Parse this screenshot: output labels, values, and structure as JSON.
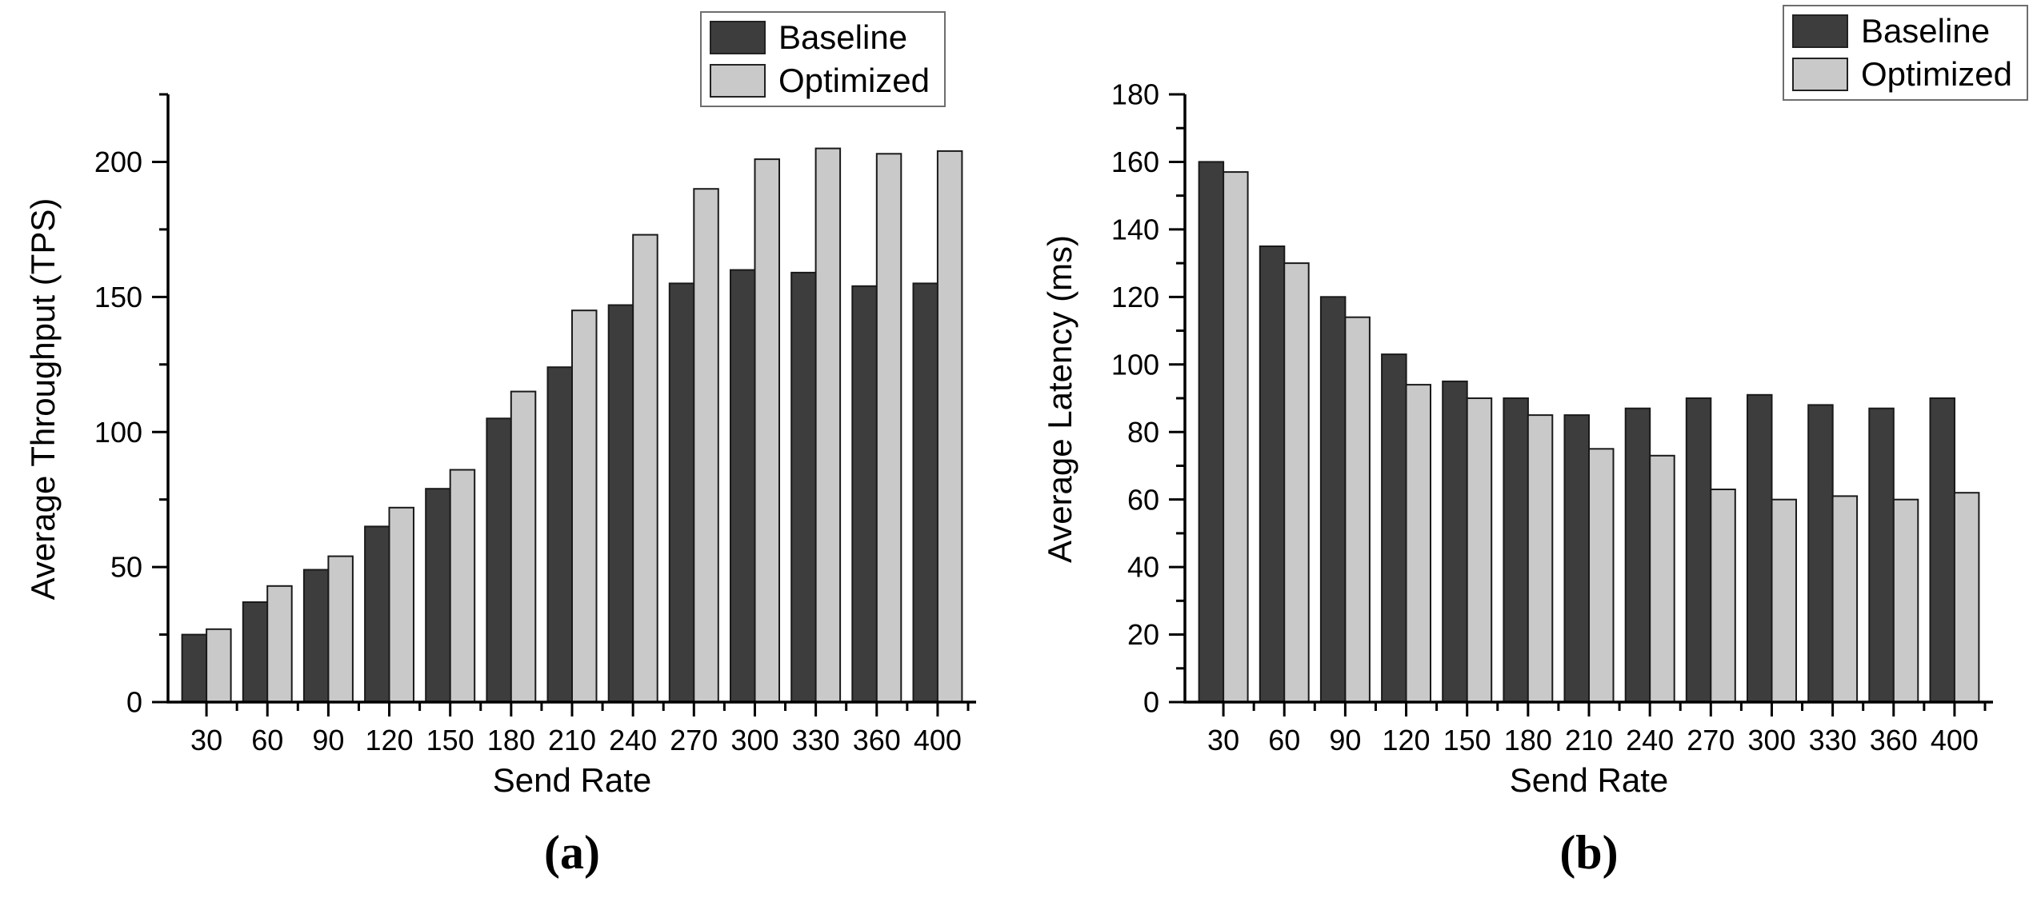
{
  "captions": {
    "a": "(a)",
    "b": "(b)"
  },
  "chart_data": [
    {
      "id": "a",
      "type": "bar",
      "title": "",
      "xlabel": "Send Rate",
      "ylabel": "Average Throughput (TPS)",
      "categories": [
        "30",
        "60",
        "90",
        "120",
        "150",
        "180",
        "210",
        "240",
        "270",
        "300",
        "330",
        "360",
        "400"
      ],
      "series": [
        {
          "name": "Baseline",
          "color": "#3d3d3d",
          "values": [
            25,
            37,
            49,
            65,
            79,
            105,
            124,
            147,
            155,
            160,
            159,
            154,
            155
          ]
        },
        {
          "name": "Optimized",
          "color": "#c9c9c9",
          "values": [
            27,
            43,
            54,
            72,
            86,
            115,
            145,
            173,
            190,
            201,
            205,
            203,
            204
          ]
        }
      ],
      "ylim": [
        0,
        225
      ],
      "y_ticks": [
        0,
        50,
        100,
        150,
        200
      ],
      "y_minor_step": 25,
      "grid": false,
      "legend_position": "top-right"
    },
    {
      "id": "b",
      "type": "bar",
      "title": "",
      "xlabel": "Send Rate",
      "ylabel": "Average Latency (ms)",
      "categories": [
        "30",
        "60",
        "90",
        "120",
        "150",
        "180",
        "210",
        "240",
        "270",
        "300",
        "330",
        "360",
        "400"
      ],
      "series": [
        {
          "name": "Baseline",
          "color": "#3d3d3d",
          "values": [
            160,
            135,
            120,
            103,
            95,
            90,
            85,
            87,
            90,
            91,
            88,
            87,
            90
          ]
        },
        {
          "name": "Optimized",
          "color": "#c9c9c9",
          "values": [
            157,
            130,
            114,
            94,
            90,
            85,
            75,
            73,
            63,
            60,
            61,
            60,
            62
          ]
        }
      ],
      "ylim": [
        0,
        180
      ],
      "y_ticks": [
        0,
        20,
        40,
        60,
        80,
        100,
        120,
        140,
        160,
        180
      ],
      "y_minor_step": 10,
      "grid": false,
      "legend_position": "top-right"
    }
  ],
  "style_colors": {
    "axis": "#000000",
    "bar_stroke": "#1a1a1a",
    "background": "#ffffff"
  }
}
